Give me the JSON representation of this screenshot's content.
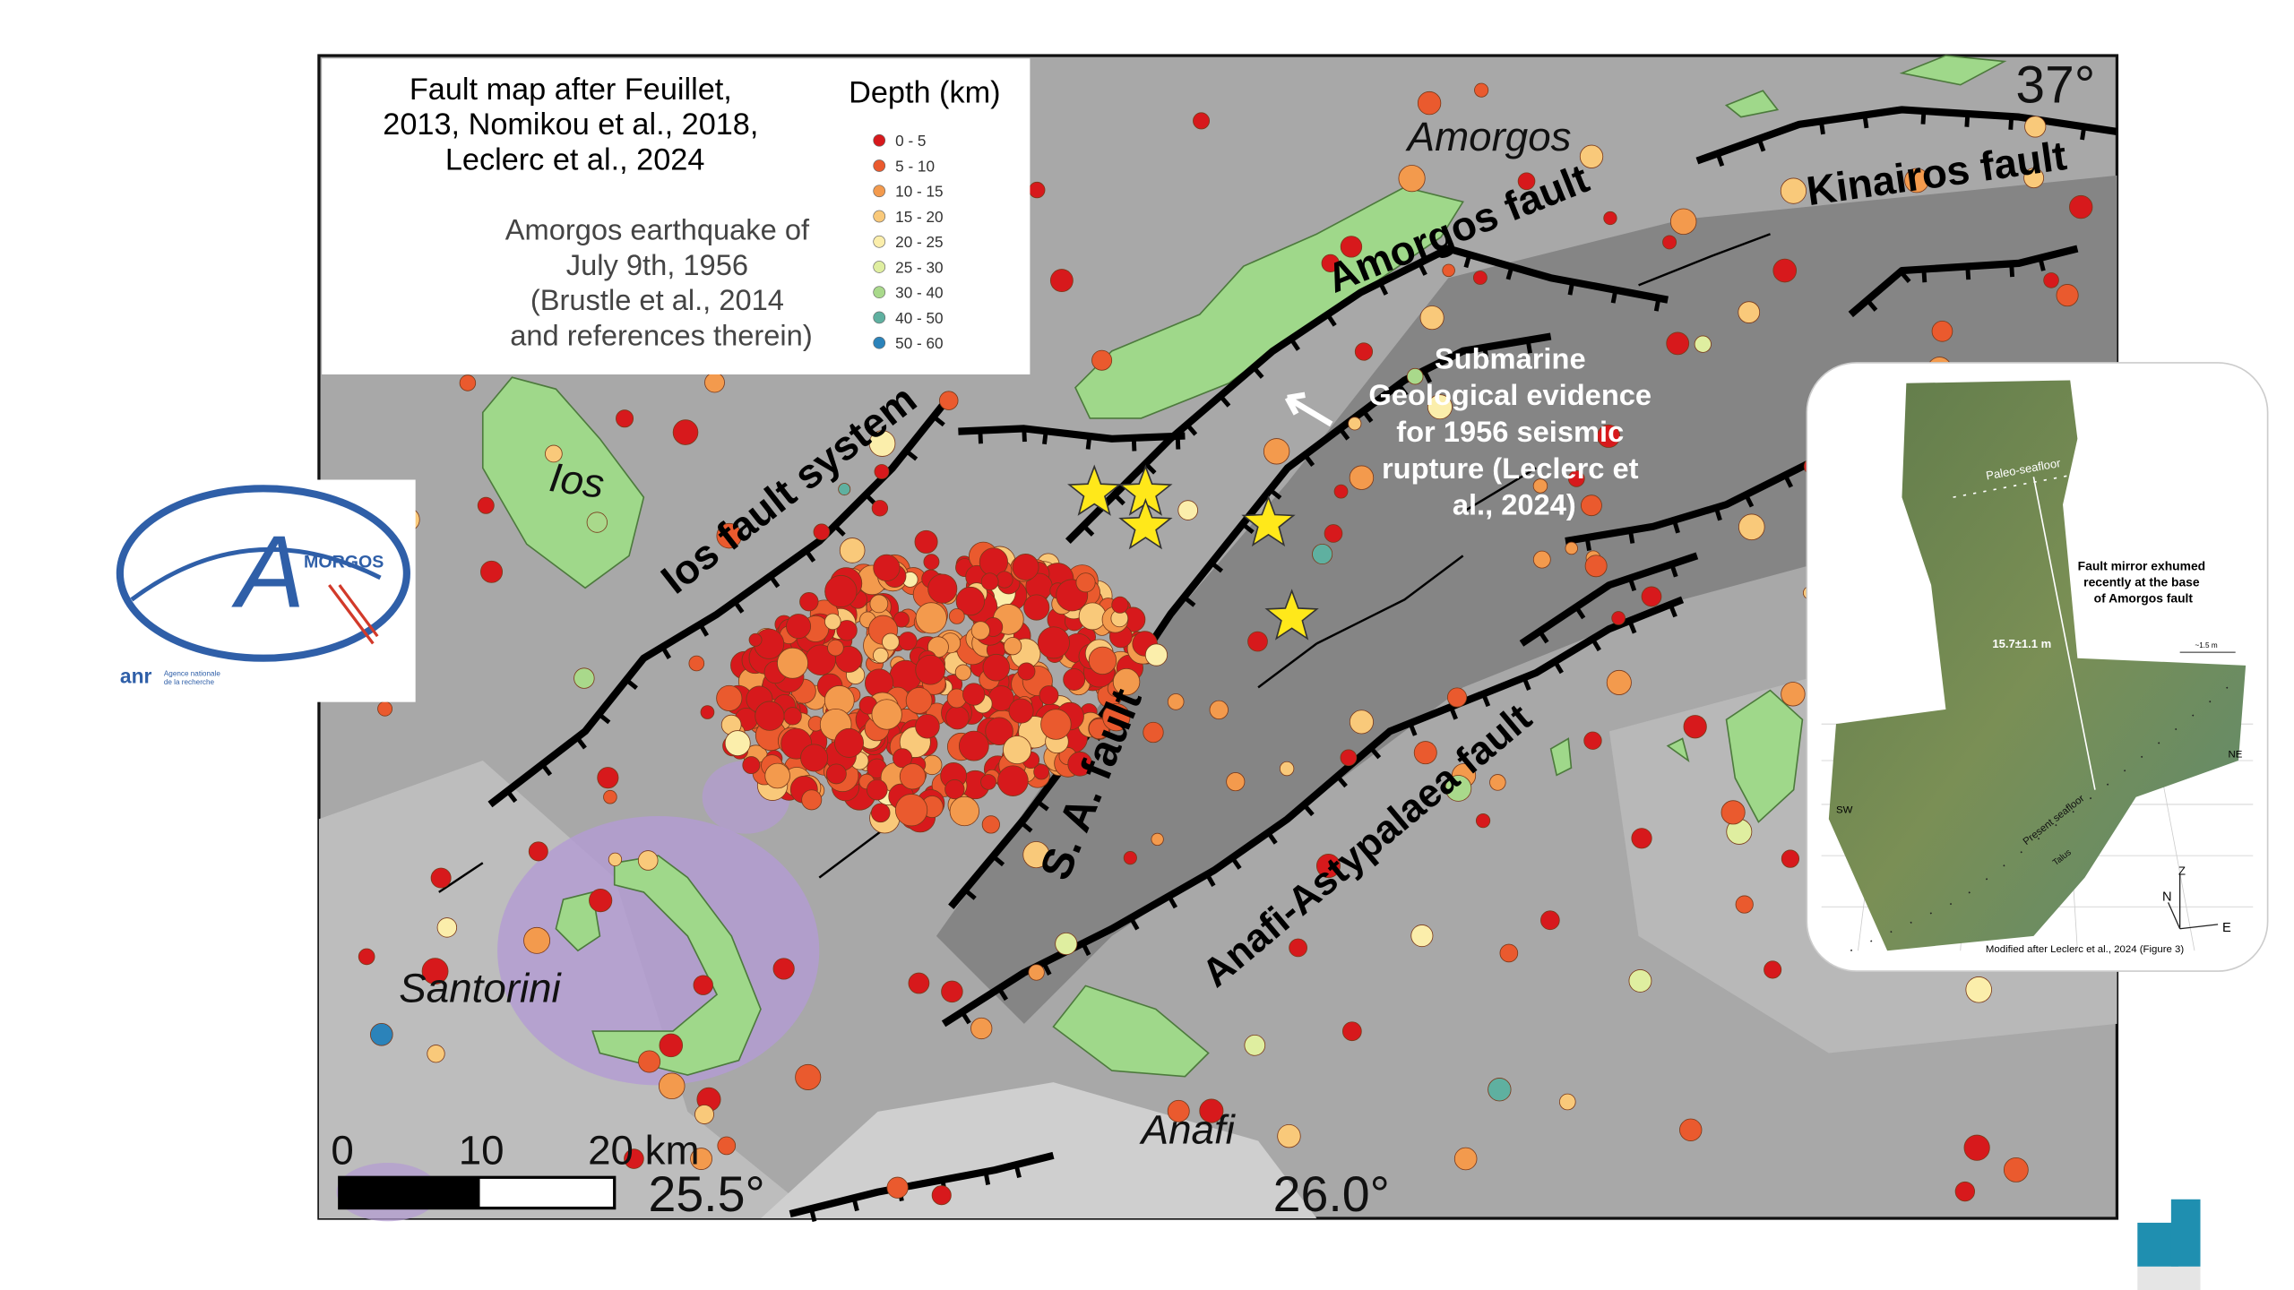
{
  "map": {
    "legend": {
      "source": [
        "Fault map after Feuillet,",
        "2013, Nomikou et al., 2018,",
        "Leclerc et al., 2024"
      ],
      "depth_title": "Depth (km)",
      "depth_classes": [
        "0 - 5",
        "5 - 10",
        "10 - 15",
        "15 - 20",
        "20 - 25",
        "25 - 30",
        "30 - 40",
        "40 - 50",
        "50 - 60"
      ],
      "star_text": [
        "Amorgos earthquake of",
        "July 9th, 1956",
        "(Brustle et al., 2014",
        "and references therein)"
      ]
    },
    "labels": {
      "amorgos": "Amorgos",
      "amorgos_fault": "Amorgos fault",
      "kinairos_fault": "Kinairos fault",
      "ios": "Ios",
      "ios_fault_system": "Ios fault system",
      "submarine_note": [
        "Submarine",
        "Geological evidence",
        "for 1956 seismic",
        "rupture (Leclerc et",
        "al., 2024)"
      ],
      "sa_fault": "S. A. fault",
      "anafi_astypalaea_fault": "Anafi-Astypalaea fault",
      "santorini": "Santorini",
      "anafi": "Anafi"
    },
    "coordinates": {
      "lat_37": "37°",
      "lon_25_5": "25.5°",
      "lon_26_0": "26.0°"
    },
    "scale_bar": [
      "0",
      "10",
      "20 km"
    ]
  },
  "inset": {
    "paleo_seafloor": "Paleo-seafloor",
    "caption": [
      "Fault mirror exhumed",
      "recently at the base",
      "of Amorgos fault"
    ],
    "offset": "15.7±1.1 m",
    "scale": "~1.5 m",
    "sw": "SW",
    "ne": "NE",
    "present_seafloor": "Present seafloor",
    "talus": "Talus",
    "north": "N",
    "up": "Z",
    "east": "E",
    "credit": "Modified after Leclerc et al., 2024 (Figure 3)"
  },
  "logo": {
    "letter": "A",
    "word": "MORGOS",
    "anr": "anr",
    "agency": [
      "Agence nationale",
      "de la recherche"
    ]
  }
}
